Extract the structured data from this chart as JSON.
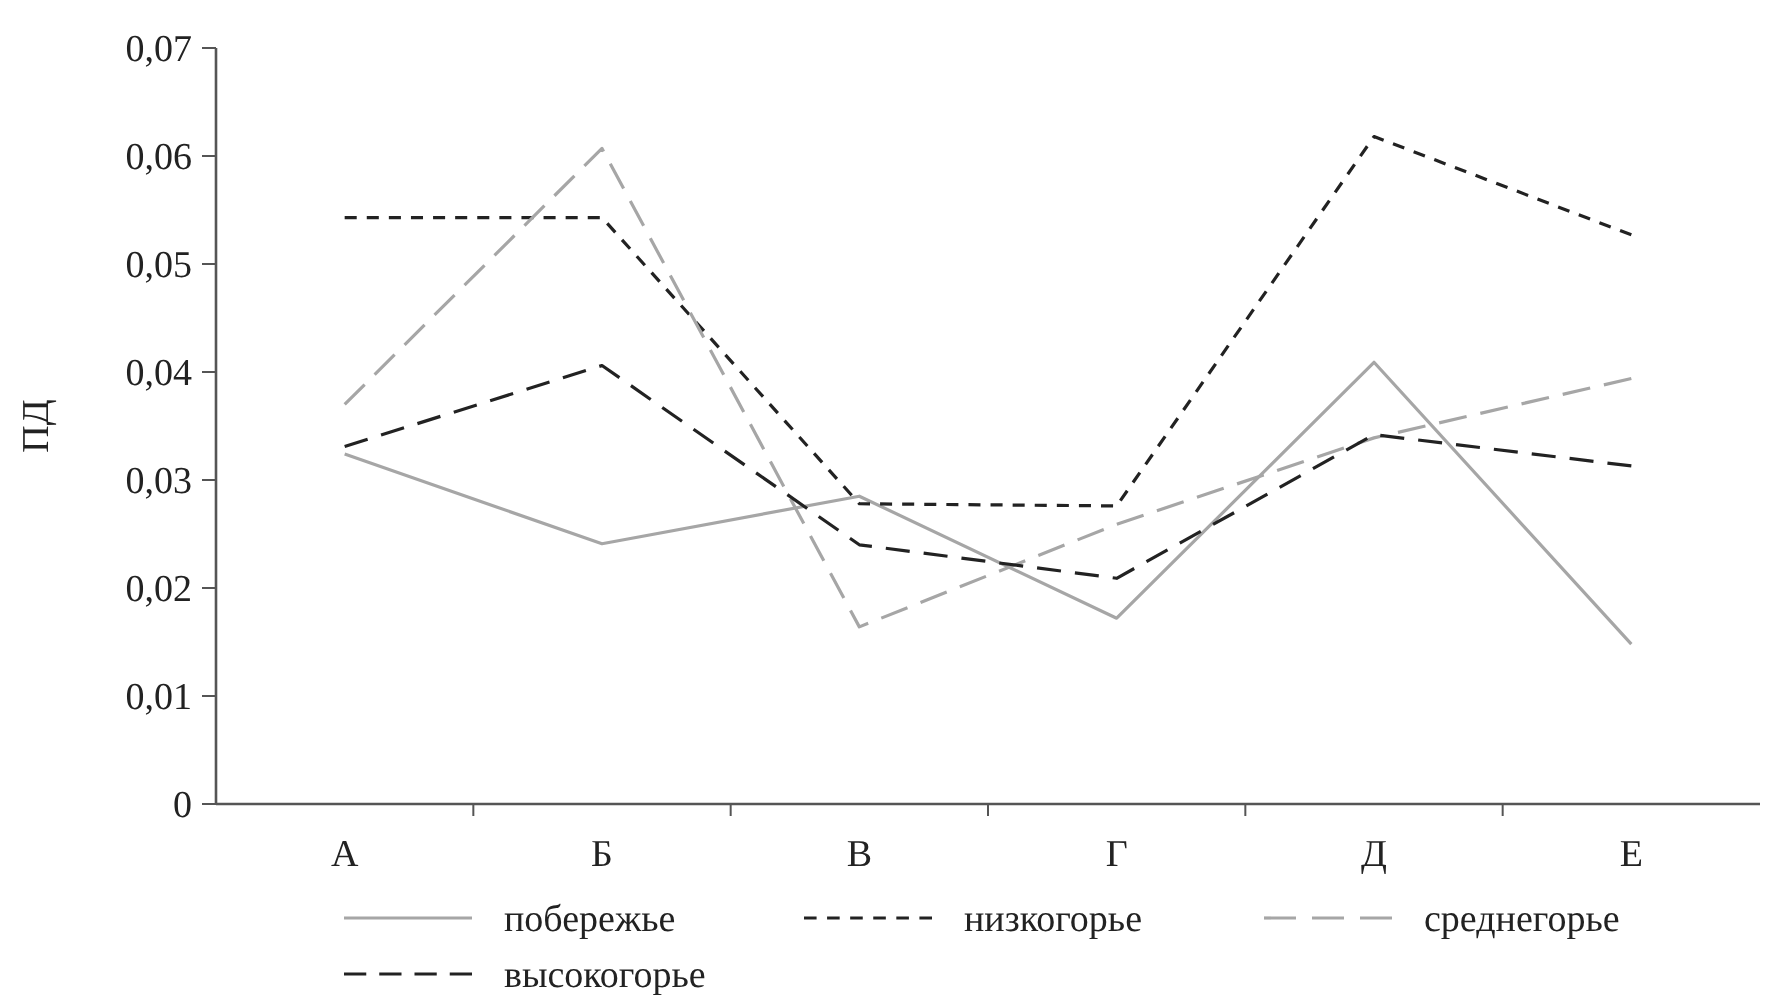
{
  "chart_data": {
    "type": "line",
    "ylabel": "ПД",
    "categories": [
      "А",
      "Б",
      "В",
      "Г",
      "Д",
      "Е"
    ],
    "series": [
      {
        "name": "побережье",
        "color": "#a6a6a6",
        "line_style": "solid",
        "values": [
          0.0324,
          0.0241,
          0.0285,
          0.0172,
          0.0409,
          0.0148
        ]
      },
      {
        "name": "низкогорье",
        "color": "#222222",
        "line_style": "dotted",
        "values": [
          0.0543,
          0.0543,
          0.0278,
          0.0276,
          0.0618,
          0.0527
        ]
      },
      {
        "name": "среднегорье",
        "color": "#a6a6a6",
        "line_style": "dashed",
        "values": [
          0.037,
          0.0607,
          0.0164,
          0.0259,
          0.0339,
          0.0394
        ]
      },
      {
        "name": "высокогорье",
        "color": "#222222",
        "line_style": "dashed",
        "values": [
          0.0331,
          0.0406,
          0.024,
          0.0209,
          0.0342,
          0.0313
        ]
      }
    ],
    "ylim": [
      0,
      0.07
    ],
    "yticks": [
      {
        "value": 0,
        "label": "0"
      },
      {
        "value": 0.01,
        "label": "0,01"
      },
      {
        "value": 0.02,
        "label": "0,02"
      },
      {
        "value": 0.03,
        "label": "0,03"
      },
      {
        "value": 0.04,
        "label": "0,04"
      },
      {
        "value": 0.05,
        "label": "0,05"
      },
      {
        "value": 0.06,
        "label": "0,06"
      },
      {
        "value": 0.07,
        "label": "0,07"
      }
    ],
    "grid": false,
    "legend": "bottom",
    "marker": "none"
  }
}
